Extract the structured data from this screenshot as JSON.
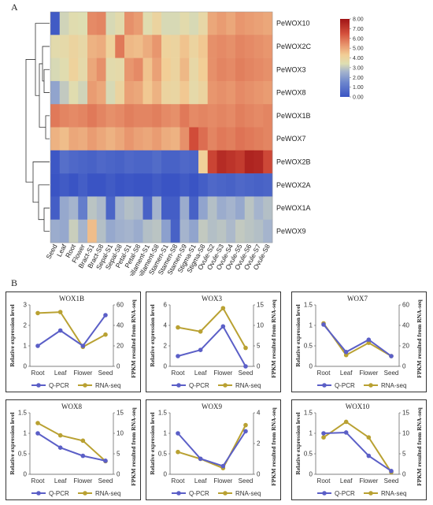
{
  "panel_a_label": "A",
  "panel_b_label": "B",
  "chart_data": [
    {
      "type": "heatmap",
      "title": "",
      "columns": [
        "Seed",
        "Leaf",
        "Root",
        "Flower",
        "Bract-S1",
        "Bract-S8",
        "Sepal-S1",
        "Sepal-S8",
        "Petal-S1",
        "Petal-S8",
        "Capillament-S1",
        "Capillament-S8",
        "Stamen-S1",
        "Stamen-S8",
        "Stamen-S9",
        "Stigma-S1",
        "Stigma-S8",
        "Ovule-S2",
        "Ovule-S3",
        "Ovule-S4",
        "Ovule-S5",
        "Ovule-S6",
        "Ovule-S7",
        "Ovule-S8"
      ],
      "rows": [
        "PeWOX10",
        "PeWOX2C",
        "PeWOX3",
        "PeWOX8",
        "PeWOX1B",
        "PeWOX7",
        "PeWOX2B",
        "PeWOX2A",
        "PeWOX1A",
        "PeWOX9"
      ],
      "values": [
        [
          0.2,
          3.2,
          3.5,
          3.4,
          5.5,
          5.6,
          3.3,
          3.6,
          5.4,
          5.2,
          3.5,
          4.0,
          3.3,
          3.3,
          3.6,
          3.3,
          3.8,
          5.0,
          5.2,
          5.0,
          5.3,
          5.2,
          5.1,
          5.0
        ],
        [
          3.6,
          3.7,
          4.0,
          3.8,
          4.8,
          4.9,
          4.1,
          5.8,
          4.7,
          4.6,
          4.9,
          5.3,
          4.1,
          4.0,
          4.5,
          4.0,
          4.4,
          5.4,
          5.5,
          5.4,
          5.6,
          5.5,
          5.4,
          5.3
        ],
        [
          3.3,
          3.5,
          4.1,
          3.7,
          5.0,
          5.4,
          3.6,
          3.7,
          5.3,
          5.5,
          4.5,
          5.1,
          4.3,
          4.0,
          4.7,
          3.8,
          4.3,
          5.4,
          5.6,
          5.5,
          5.7,
          5.6,
          5.5,
          5.4
        ],
        [
          2.2,
          3.0,
          3.5,
          3.2,
          5.2,
          5.0,
          3.3,
          4.0,
          5.1,
          5.0,
          4.4,
          4.8,
          4.0,
          3.9,
          4.4,
          3.7,
          4.0,
          5.3,
          5.4,
          5.3,
          5.5,
          5.4,
          5.3,
          5.2
        ],
        [
          5.8,
          5.6,
          5.5,
          5.6,
          5.8,
          5.6,
          5.4,
          5.5,
          5.7,
          5.6,
          5.6,
          5.7,
          5.5,
          5.4,
          5.8,
          5.5,
          5.6,
          5.5,
          5.6,
          5.5,
          5.7,
          5.6,
          5.5,
          5.6
        ],
        [
          4.8,
          4.6,
          5.0,
          4.9,
          5.2,
          5.0,
          4.8,
          5.0,
          5.3,
          5.1,
          5.0,
          5.2,
          4.9,
          4.8,
          5.4,
          6.6,
          6.0,
          5.6,
          5.8,
          5.7,
          5.9,
          5.8,
          5.7,
          5.6
        ],
        [
          0.1,
          0.8,
          0.6,
          0.5,
          0.4,
          0.6,
          0.5,
          0.4,
          0.6,
          0.5,
          0.5,
          0.7,
          0.4,
          0.4,
          0.6,
          0.5,
          4.2,
          6.8,
          7.4,
          7.2,
          7.0,
          7.6,
          7.5,
          6.7
        ],
        [
          0.0,
          0.2,
          0.0,
          0.3,
          0.0,
          0.0,
          0.2,
          0.0,
          0.1,
          0.0,
          0.0,
          0.2,
          0.0,
          0.0,
          0.2,
          0.0,
          0.3,
          0.6,
          0.5,
          0.4,
          0.6,
          0.5,
          0.4,
          0.5
        ],
        [
          0.3,
          2.3,
          2.6,
          1.2,
          2.9,
          2.7,
          0.5,
          2.6,
          2.8,
          2.7,
          0.4,
          2.6,
          0.3,
          0.3,
          2.4,
          0.4,
          2.2,
          2.8,
          2.4,
          2.6,
          2.3,
          2.9,
          2.6,
          2.8
        ],
        [
          2.4,
          2.3,
          3.1,
          2.6,
          4.6,
          2.8,
          2.3,
          2.5,
          2.6,
          2.4,
          2.8,
          2.9,
          2.1,
          0.4,
          2.6,
          2.2,
          3.0,
          2.8,
          2.9,
          2.7,
          3.0,
          2.9,
          2.8,
          2.6
        ]
      ],
      "colorbar": {
        "min": 0,
        "max": 8,
        "ticks": [
          "8.00",
          "7.00",
          "6.00",
          "5.00",
          "4.00",
          "3.00",
          "2.00",
          "1.00",
          "0.00"
        ]
      }
    },
    {
      "type": "line",
      "title": "WOX1B",
      "categories": [
        "Root",
        "Leaf",
        "Flower",
        "Seed"
      ],
      "ylabel": "Relative expression level",
      "y2label": "FPKM resulted from RNA-seq",
      "ylim": [
        0,
        3
      ],
      "yticks": [
        0,
        1,
        2,
        3
      ],
      "y2lim": [
        0,
        60
      ],
      "y2ticks": [
        0,
        20,
        40,
        60
      ],
      "series": [
        {
          "name": "Q-PCR",
          "axis": "left",
          "color": "#5b5fc7",
          "values": [
            1.0,
            1.75,
            1.0,
            2.5
          ]
        },
        {
          "name": "RNA-seq",
          "axis": "right",
          "color": "#b9a132",
          "values": [
            52,
            53,
            19,
            31
          ]
        }
      ]
    },
    {
      "type": "line",
      "title": "WOX3",
      "categories": [
        "Root",
        "Leaf",
        "Flower",
        "Seed"
      ],
      "ylabel": "Relative expression level",
      "y2label": "FPKM resulted from RNA-seq",
      "ylim": [
        0,
        6
      ],
      "yticks": [
        0,
        2,
        4,
        6
      ],
      "y2lim": [
        0,
        15
      ],
      "y2ticks": [
        0,
        5,
        10,
        15
      ],
      "series": [
        {
          "name": "Q-PCR",
          "axis": "left",
          "color": "#5b5fc7",
          "values": [
            1.0,
            1.6,
            3.9,
            0.0
          ]
        },
        {
          "name": "RNA-seq",
          "axis": "right",
          "color": "#b9a132",
          "values": [
            9.5,
            8.5,
            14.2,
            4.5
          ]
        }
      ]
    },
    {
      "type": "line",
      "title": "WOX7",
      "categories": [
        "Root",
        "Leaf",
        "Flower",
        "Seed"
      ],
      "ylabel": "Relative expression level",
      "y2label": "FPKM resulted from RNA-seq",
      "ylim": [
        0,
        1.5
      ],
      "yticks": [
        0,
        0.5,
        1,
        1.5
      ],
      "y2lim": [
        0,
        60
      ],
      "y2ticks": [
        0,
        20,
        40,
        60
      ],
      "series": [
        {
          "name": "Q-PCR",
          "axis": "left",
          "color": "#5b5fc7",
          "values": [
            1.02,
            0.35,
            0.65,
            0.25
          ]
        },
        {
          "name": "RNA-seq",
          "axis": "right",
          "color": "#b9a132",
          "values": [
            42,
            11,
            23,
            10
          ]
        }
      ]
    },
    {
      "type": "line",
      "title": "WOX8",
      "categories": [
        "Root",
        "Leaf",
        "Flower",
        "Seed"
      ],
      "ylabel": "Relative expression level",
      "y2label": "FPKM resulted from RNA-seq",
      "ylim": [
        0,
        1.5
      ],
      "yticks": [
        0,
        0.5,
        1,
        1.5
      ],
      "y2lim": [
        0,
        15
      ],
      "y2ticks": [
        0,
        5,
        10,
        15
      ],
      "series": [
        {
          "name": "Q-PCR",
          "axis": "left",
          "color": "#5b5fc7",
          "values": [
            1.0,
            0.65,
            0.45,
            0.33
          ]
        },
        {
          "name": "RNA-seq",
          "axis": "right",
          "color": "#b9a132",
          "values": [
            12.5,
            9.5,
            8.2,
            3.2
          ]
        }
      ]
    },
    {
      "type": "line",
      "title": "WOX9",
      "categories": [
        "Root",
        "Leaf",
        "Flower",
        "Seed"
      ],
      "ylabel": "Relative expression level",
      "y2label": "FPKM resulted from RNA-seq",
      "ylim": [
        0,
        1.5
      ],
      "yticks": [
        0,
        0.5,
        1,
        1.5
      ],
      "y2lim": [
        0,
        4
      ],
      "y2ticks": [
        0,
        2,
        4
      ],
      "series": [
        {
          "name": "Q-PCR",
          "axis": "left",
          "color": "#5b5fc7",
          "values": [
            1.0,
            0.38,
            0.2,
            1.05
          ]
        },
        {
          "name": "RNA-seq",
          "axis": "right",
          "color": "#b9a132",
          "values": [
            1.45,
            1.0,
            0.4,
            3.2
          ]
        }
      ]
    },
    {
      "type": "line",
      "title": "WOX10",
      "categories": [
        "Root",
        "Leaf",
        "Flower",
        "Seed"
      ],
      "ylabel": "Relative expression level",
      "y2label": "FPKM resulted from RNA-seq",
      "ylim": [
        0,
        1.5
      ],
      "yticks": [
        0,
        0.5,
        1,
        1.5
      ],
      "y2lim": [
        0,
        15
      ],
      "y2ticks": [
        0,
        5,
        10,
        15
      ],
      "series": [
        {
          "name": "Q-PCR",
          "axis": "left",
          "color": "#5b5fc7",
          "values": [
            1.0,
            1.02,
            0.45,
            0.08
          ]
        },
        {
          "name": "RNA-seq",
          "axis": "right",
          "color": "#b9a132",
          "values": [
            9.0,
            12.8,
            9.0,
            0.5
          ]
        }
      ]
    }
  ]
}
